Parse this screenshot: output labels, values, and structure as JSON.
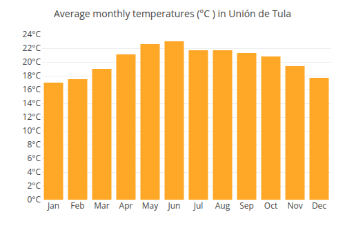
{
  "chart_data": {
    "type": "bar",
    "title": "Average monthly temperatures (°C ) in Unión de Tula",
    "categories": [
      "Jan",
      "Feb",
      "Mar",
      "Apr",
      "May",
      "Jun",
      "Jul",
      "Aug",
      "Sep",
      "Oct",
      "Nov",
      "Dec"
    ],
    "values": [
      17.0,
      17.5,
      19.0,
      21.1,
      22.6,
      23.0,
      21.7,
      21.7,
      21.3,
      20.8,
      19.4,
      17.7
    ],
    "color": "#FFA726",
    "ylim": [
      0,
      24
    ],
    "yticks": [
      {
        "value": 0,
        "label": "0°C"
      },
      {
        "value": 2,
        "label": "2°C"
      },
      {
        "value": 4,
        "label": "4°C"
      },
      {
        "value": 6,
        "label": "6°C"
      },
      {
        "value": 8,
        "label": "8°C"
      },
      {
        "value": 10,
        "label": "10°C"
      },
      {
        "value": 12,
        "label": "12°C"
      },
      {
        "value": 14,
        "label": "14°C"
      },
      {
        "value": 16,
        "label": "16°C"
      },
      {
        "value": 18,
        "label": "18°C"
      },
      {
        "value": 20,
        "label": "20°C"
      },
      {
        "value": 22,
        "label": "22°C"
      },
      {
        "value": 24,
        "label": "24°C"
      }
    ],
    "grid": true
  }
}
